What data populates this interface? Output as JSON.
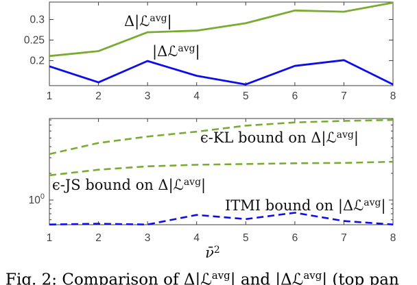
{
  "figure_caption": {
    "s1": "Fig. 2: Comparison of Δ|ℒ",
    "sup1": "avg",
    "s2": "| and |Δℒ",
    "sup2": "avg",
    "s3": "| (top pan"
  },
  "colors": {
    "green": "#77ac30",
    "blue": "#0d0deb",
    "axis": "#3c3c3c"
  },
  "chart_data": [
    {
      "type": "line",
      "panel": "top",
      "x": [
        1,
        2,
        3,
        4,
        5,
        6,
        7,
        8
      ],
      "xlim": [
        1,
        8
      ],
      "ylim": [
        0.139,
        0.3425
      ],
      "yscale": "linear",
      "grid": false,
      "xticks": [
        "1",
        "2",
        "3",
        "4",
        "5",
        "6",
        "7",
        "8"
      ],
      "yticks": [
        {
          "v": 0.2,
          "label": "0.2"
        },
        {
          "v": 0.25,
          "label": "0.25"
        },
        {
          "v": 0.3,
          "label": "0.3"
        }
      ],
      "series": [
        {
          "name": "Δ|ℒ^avg|",
          "color": "#77ac30",
          "dash": "",
          "values": [
            0.211,
            0.223,
            0.269,
            0.273,
            0.291,
            0.322,
            0.319,
            0.341
          ]
        },
        {
          "name": "|Δℒ^avg|",
          "color": "#0d0deb",
          "dash": "",
          "values": [
            0.186,
            0.147,
            0.199,
            0.163,
            0.142,
            0.187,
            0.201,
            0.142
          ]
        }
      ],
      "annotations": [
        {
          "pre": "Δ|ℒ",
          "sup": "avg",
          "post": "|"
        },
        {
          "pre": "|Δℒ",
          "sup": "avg",
          "post": "|"
        }
      ]
    },
    {
      "type": "line",
      "panel": "bottom",
      "x": [
        1,
        2,
        3,
        4,
        5,
        6,
        7,
        8
      ],
      "xlim": [
        1,
        8
      ],
      "ylim": [
        0.527,
        8.3
      ],
      "yscale": "log",
      "grid": false,
      "xticks": [
        "1",
        "2",
        "3",
        "4",
        "5",
        "6",
        "7",
        "8"
      ],
      "yticks": [
        {
          "v": 1,
          "label": "10",
          "sup": "0"
        }
      ],
      "yticks_minor": [
        0.6,
        0.7,
        0.8,
        0.9,
        2,
        3,
        4,
        5,
        6,
        7,
        8
      ],
      "xlabel": {
        "base": "ν̄",
        "sup": "2"
      },
      "series": [
        {
          "name": "ϵ-KL bound on Δ|ℒ^avg|",
          "color": "#77ac30",
          "dash": "10 6",
          "values": [
            3.3,
            4.4,
            5.2,
            5.9,
            6.9,
            7.5,
            7.8,
            8.0
          ]
        },
        {
          "name": "ϵ-JS bound on Δ|ℒ^avg|",
          "color": "#77ac30",
          "dash": "10 6",
          "values": [
            1.9,
            2.2,
            2.4,
            2.5,
            2.55,
            2.6,
            2.62,
            2.7
          ]
        },
        {
          "name": "ITMI bound on |Δℒ^avg|",
          "color": "#0d0deb",
          "dash": "10 6",
          "values": [
            0.53,
            0.54,
            0.53,
            0.68,
            0.61,
            0.72,
            0.58,
            0.53
          ]
        }
      ],
      "annotations": [
        {
          "pre": "ϵ-KL bound on Δ|ℒ",
          "sup": "avg",
          "post": "|"
        },
        {
          "pre": "ϵ-JS bound on Δ|ℒ",
          "sup": "avg",
          "post": "|"
        },
        {
          "pre": "ITMI bound on |Δℒ",
          "sup": "avg",
          "post": "|"
        }
      ]
    }
  ]
}
